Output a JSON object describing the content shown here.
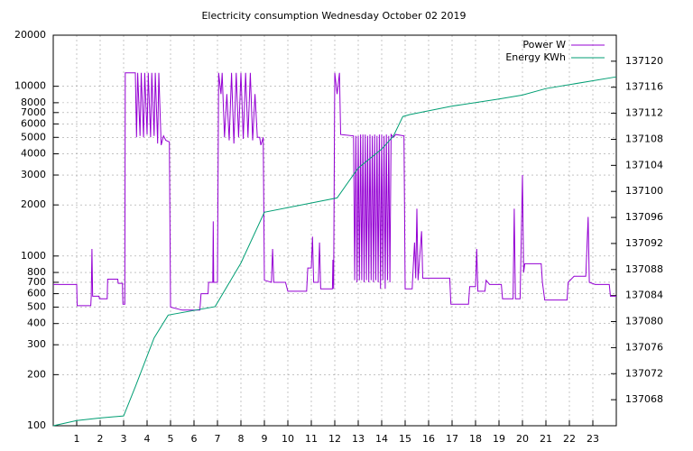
{
  "chart_data": {
    "type": "line",
    "title": "Electricity consumption Wednesday October 02 2019",
    "xlim": [
      0,
      24
    ],
    "xticks": [
      1,
      2,
      3,
      4,
      5,
      6,
      7,
      8,
      9,
      10,
      11,
      12,
      13,
      14,
      15,
      16,
      17,
      18,
      19,
      20,
      21,
      22,
      23
    ],
    "ylim": [
      100,
      20000
    ],
    "ylog": true,
    "yticks": [
      100,
      200,
      300,
      400,
      500,
      600,
      700,
      800,
      1000,
      2000,
      3000,
      4000,
      5000,
      6000,
      7000,
      8000,
      10000,
      20000
    ],
    "y2lim": [
      137064,
      137124
    ],
    "y2ticks": [
      137068,
      137072,
      137076,
      137080,
      137084,
      137088,
      137092,
      137096,
      137100,
      137104,
      137108,
      137112,
      137116,
      137120
    ],
    "grid": true,
    "legend": "top-right",
    "series": [
      {
        "name": "Power W",
        "color": "#9400d3",
        "x": [
          0,
          1.0,
          1.02,
          1.6,
          1.62,
          1.65,
          1.68,
          1.95,
          1.97,
          2.3,
          2.32,
          2.75,
          2.77,
          2.95,
          2.97,
          3.05,
          3.07,
          3.5,
          3.55,
          3.6,
          3.7,
          3.75,
          3.85,
          3.9,
          4.0,
          4.05,
          4.15,
          4.2,
          4.3,
          4.35,
          4.45,
          4.5,
          4.6,
          4.7,
          4.8,
          4.95,
          5.0,
          5.5,
          6.25,
          6.3,
          6.6,
          6.62,
          6.8,
          6.82,
          6.84,
          7.0,
          7.05,
          7.15,
          7.2,
          7.3,
          7.4,
          7.5,
          7.6,
          7.7,
          7.8,
          7.9,
          8.0,
          8.1,
          8.2,
          8.3,
          8.4,
          8.5,
          8.6,
          8.7,
          8.8,
          8.85,
          8.95,
          9.0,
          9.3,
          9.35,
          9.4,
          9.9,
          10.0,
          10.8,
          10.85,
          11.0,
          11.05,
          11.1,
          11.3,
          11.35,
          11.4,
          11.9,
          11.92,
          11.95,
          12.0,
          12.1,
          12.2,
          12.25,
          12.8,
          12.85,
          12.9,
          12.95,
          13.0,
          13.05,
          13.1,
          13.15,
          13.2,
          13.25,
          13.3,
          13.35,
          13.4,
          13.45,
          13.5,
          13.55,
          13.6,
          13.65,
          13.7,
          13.75,
          13.8,
          13.85,
          13.9,
          13.95,
          14.0,
          14.05,
          14.1,
          14.15,
          14.2,
          14.25,
          14.3,
          14.35,
          14.4,
          14.5,
          14.6,
          14.95,
          15.0,
          15.3,
          15.32,
          15.4,
          15.45,
          15.5,
          15.55,
          15.7,
          15.75,
          16.9,
          16.95,
          17.7,
          17.75,
          18.0,
          18.05,
          18.1,
          18.4,
          18.45,
          18.6,
          19.1,
          19.15,
          19.6,
          19.65,
          19.7,
          19.9,
          20.0,
          20.05,
          20.1,
          20.8,
          20.85,
          20.95,
          21.9,
          21.95,
          22.2,
          22.7,
          22.8,
          22.85,
          23.1,
          23.7,
          23.75,
          24.0
        ],
        "values": [
          680,
          680,
          510,
          510,
          580,
          1100,
          580,
          580,
          560,
          560,
          730,
          730,
          690,
          690,
          520,
          520,
          12000,
          12000,
          5000,
          12000,
          5100,
          12000,
          5000,
          12000,
          5200,
          12000,
          5000,
          12000,
          5100,
          12000,
          4600,
          12000,
          4500,
          5100,
          4800,
          4700,
          500,
          480,
          480,
          600,
          600,
          700,
          700,
          1600,
          700,
          700,
          12000,
          9000,
          12000,
          5000,
          9000,
          4800,
          12000,
          4600,
          12000,
          5000,
          12000,
          4900,
          12000,
          5000,
          12000,
          4800,
          9000,
          5000,
          5000,
          4500,
          5000,
          720,
          700,
          1100,
          700,
          700,
          620,
          620,
          850,
          850,
          1300,
          700,
          700,
          1200,
          640,
          640,
          950,
          640,
          12000,
          9000,
          12000,
          5200,
          5100,
          720,
          5100,
          700,
          5100,
          720,
          5200,
          720,
          5200,
          700,
          5200,
          720,
          5100,
          700,
          5200,
          720,
          5100,
          700,
          5200,
          720,
          5100,
          700,
          5200,
          640,
          5200,
          720,
          5100,
          640,
          5200,
          720,
          5100,
          700,
          5200,
          5000,
          5200,
          5100,
          640,
          640,
          740,
          1200,
          740,
          1900,
          720,
          1400,
          740,
          740,
          520,
          520,
          660,
          660,
          1100,
          620,
          620,
          720,
          680,
          680,
          560,
          560,
          1900,
          560,
          560,
          3000,
          800,
          900,
          900,
          700,
          550,
          550,
          700,
          760,
          760,
          1700,
          700,
          680,
          680,
          580,
          580
        ]
      },
      {
        "name": "Energy KWh",
        "color": "#009e73",
        "axis": "y2",
        "x": [
          0,
          1,
          2,
          3,
          3.5,
          4.3,
          4.9,
          6.9,
          8,
          9,
          12.1,
          13,
          14,
          14.5,
          14.9,
          15.2,
          17,
          19,
          20,
          21,
          24
        ],
        "values": [
          137064,
          137064.8,
          137065.2,
          137065.5,
          137070,
          137077.5,
          137081,
          137082.3,
          137089,
          137096.8,
          137099,
          137103.6,
          137106.5,
          137108.5,
          137111.5,
          137111.8,
          137113.1,
          137114.2,
          137114.8,
          137115.8,
          137117.6
        ]
      }
    ]
  }
}
